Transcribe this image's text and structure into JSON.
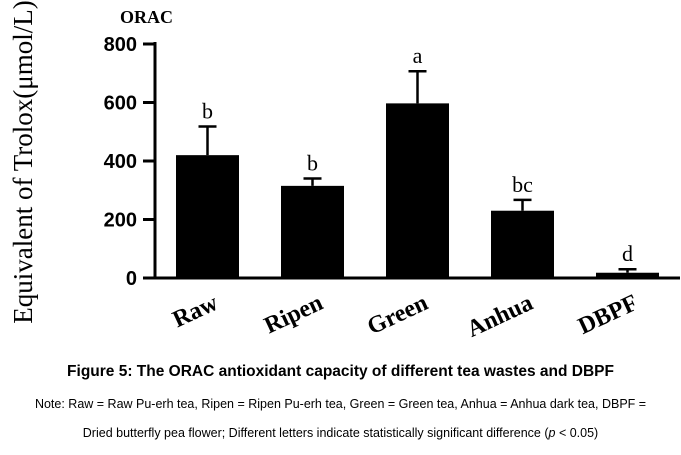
{
  "chart_data": {
    "type": "bar",
    "title": "ORAC",
    "ylabel": "Equivalent of Trolox(μmol/L)",
    "xlabel": "",
    "categories": [
      "Raw",
      "Ripen",
      "Green",
      "Anhua",
      "DBPF"
    ],
    "values": [
      420,
      315,
      597,
      230,
      18
    ],
    "errors": [
      98,
      25,
      110,
      37,
      12
    ],
    "significance_letters": [
      "b",
      "b",
      "a",
      "bc",
      "d"
    ],
    "ylim": [
      0,
      800
    ],
    "yticks": [
      0,
      200,
      400,
      600,
      800
    ],
    "ytick_labels": [
      "0",
      "200",
      "400",
      "600",
      "800"
    ],
    "bar_color": "#000000",
    "grid": false,
    "legend": "none"
  },
  "caption": {
    "figure_title": "Figure 5: The ORAC antioxidant capacity of different tea wastes and DBPF",
    "note_line1": "Note: Raw = Raw Pu-erh tea, Ripen = Ripen Pu-erh tea, Green = Green tea, Anhua = Anhua dark tea, DBPF =",
    "note_line2_prefix": "Dried butterfly pea flower; Different letters indicate statistically significant difference (",
    "note_line2_p": "p",
    "note_line2_suffix": " < 0.05)"
  }
}
